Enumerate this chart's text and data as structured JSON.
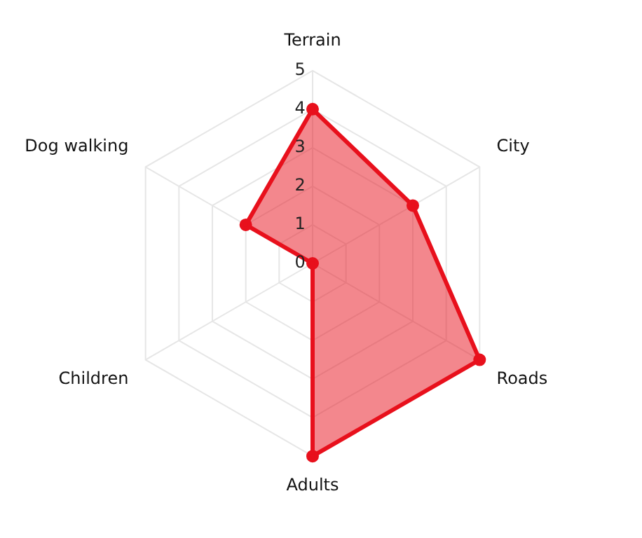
{
  "chart_data": {
    "type": "radar",
    "categories": [
      "Terrain",
      "City",
      "Roads",
      "Adults",
      "Children",
      "Dog walking"
    ],
    "series": [
      {
        "color": "#e8101c",
        "values": [
          4,
          3,
          5,
          5,
          0,
          2
        ]
      }
    ],
    "ylim": [
      0,
      5
    ],
    "yticks": [
      0,
      1,
      2,
      3,
      4,
      5
    ],
    "grid": true,
    "marker": "circle",
    "legend": false
  }
}
